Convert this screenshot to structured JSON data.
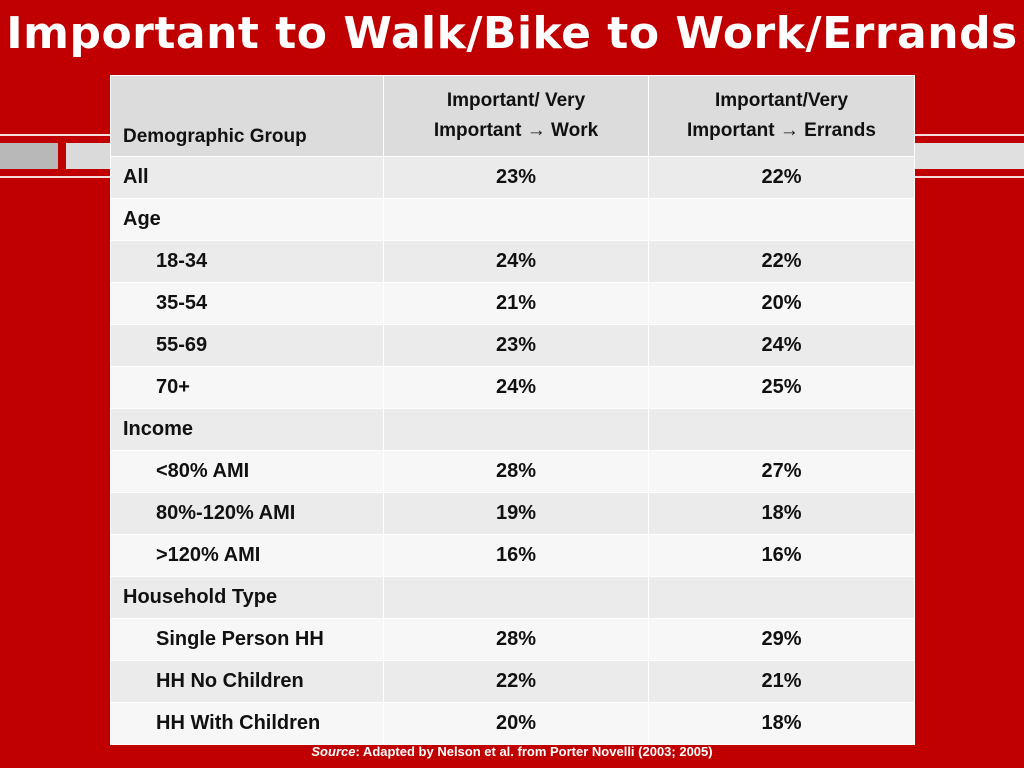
{
  "title": "Important to Walk/Bike to Work/Errands",
  "table": {
    "headers": {
      "group": "Demographic Group",
      "work_line1": "Important/ Very",
      "work_line2": "Important → Work",
      "errands_line1": "Important/Very",
      "errands_line2": "Important → Errands"
    },
    "rows": [
      {
        "label": "All",
        "work": "23%",
        "errands": "22%"
      },
      {
        "label": "Age",
        "work": "",
        "errands": ""
      },
      {
        "label": "18-34",
        "work": "24%",
        "errands": "22%"
      },
      {
        "label": "35-54",
        "work": "21%",
        "errands": "20%"
      },
      {
        "label": "55-69",
        "work": "23%",
        "errands": "24%"
      },
      {
        "label": "70+",
        "work": "24%",
        "errands": "25%"
      },
      {
        "label": "Income",
        "work": "",
        "errands": ""
      },
      {
        "label": "<80% AMI",
        "work": "28%",
        "errands": "27%"
      },
      {
        "label": "80%-120% AMI",
        "work": "19%",
        "errands": "18%"
      },
      {
        "label": ">120% AMI",
        "work": "16%",
        "errands": "16%"
      },
      {
        "label": "Household Type",
        "work": "",
        "errands": ""
      },
      {
        "label": "Single Person HH",
        "work": "28%",
        "errands": "29%"
      },
      {
        "label": "HH No Children",
        "work": "22%",
        "errands": "21%"
      },
      {
        "label": "HH With Children",
        "work": "20%",
        "errands": "18%"
      }
    ]
  },
  "source": {
    "label": "Source",
    "text": ": Adapted by Nelson et al. from Porter Novelli (2003; 2005)"
  },
  "colors": {
    "background": "#c00000",
    "header_fill": "#dcdcdc",
    "row_fill_dark": "#ebebeb",
    "row_fill_light": "#f7f7f7"
  }
}
